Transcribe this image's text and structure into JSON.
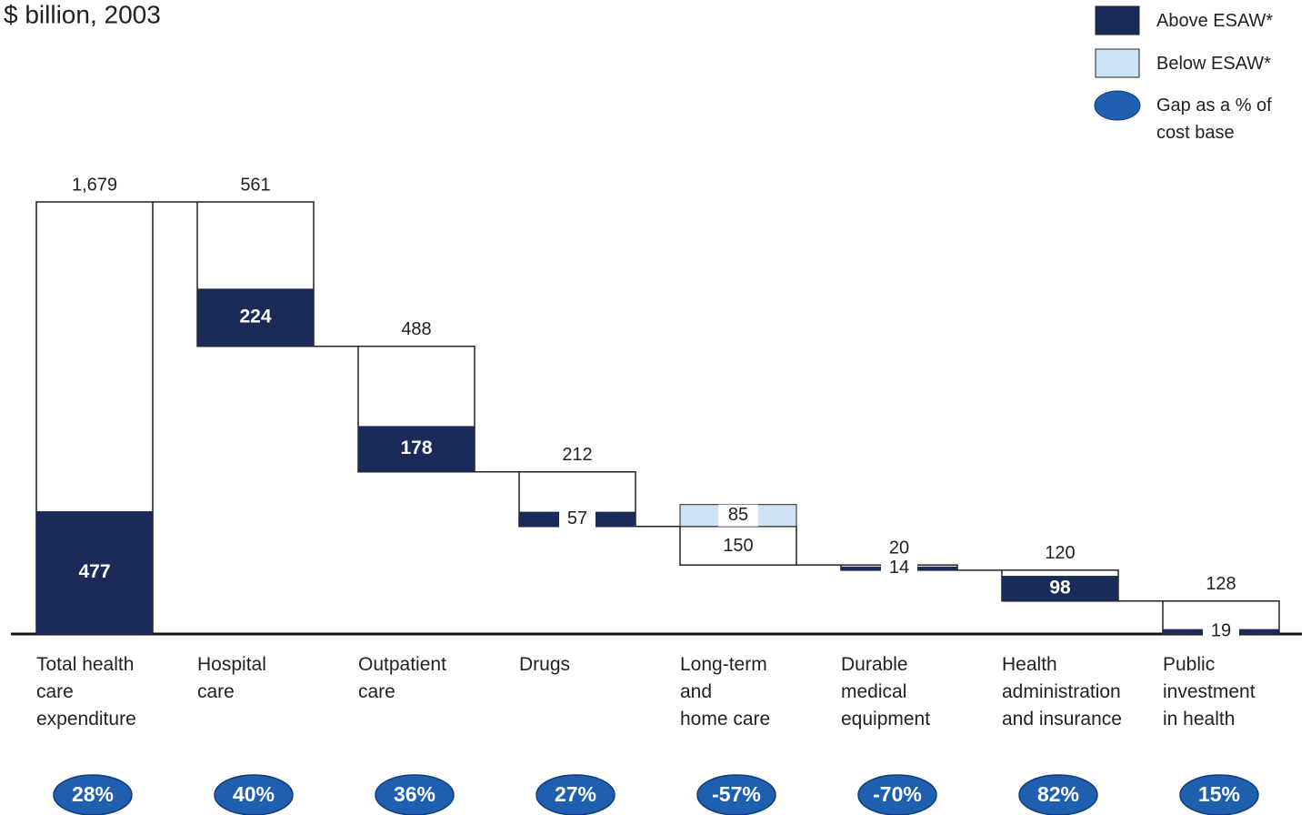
{
  "chart_data": {
    "type": "waterfall",
    "subtitle": "$ billion, 2003",
    "categories": [
      "Total health\ncare\nexpenditure",
      "Hospital\ncare",
      "Outpatient\ncare",
      "Drugs",
      "Long-term\nand\nhome care",
      "Durable\nmedical\nequipment",
      "Health\nadministration\nand insurance",
      "Public\ninvestment\nin health"
    ],
    "totals": [
      1679,
      561,
      488,
      212,
      150,
      20,
      120,
      128
    ],
    "total_labels": [
      "1,679",
      "561",
      "488",
      "212",
      "150",
      "20",
      "120",
      "128"
    ],
    "series": [
      {
        "name": "Above ESAW*",
        "color": "#1c2a5a",
        "values": [
          477,
          224,
          178,
          57,
          null,
          14,
          98,
          19
        ]
      },
      {
        "name": "Below ESAW*",
        "color": "#cfe3f5",
        "values": [
          null,
          null,
          null,
          null,
          85,
          null,
          null,
          null
        ]
      }
    ],
    "gap": {
      "name": "Gap as a % of cost base",
      "color": "#1f5fb0",
      "values": [
        28,
        40,
        36,
        27,
        -57,
        -70,
        82,
        15
      ],
      "value_labels": [
        "28%",
        "40%",
        "36%",
        "27%",
        "-57%",
        "-70%",
        "82%",
        "15%"
      ]
    }
  }
}
